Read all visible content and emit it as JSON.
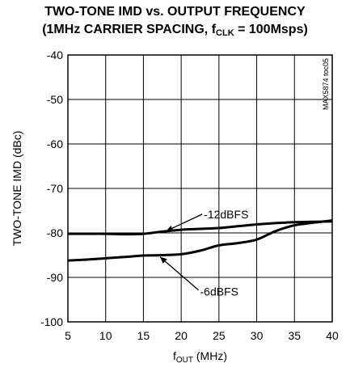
{
  "chart_data": {
    "type": "line",
    "title_line1": "TWO-TONE IMD vs. OUTPUT FREQUENCY",
    "title_line2_prefix": "(1MHz CARRIER SPACING, f",
    "title_line2_sub": "CLK",
    "title_line2_suffix": " = 100Msps)",
    "xlabel_prefix": "f",
    "xlabel_sub": "OUT",
    "xlabel_suffix": " (MHz)",
    "ylabel": "TWO-TONE IMD (dBc)",
    "xlim": [
      5,
      40
    ],
    "ylim": [
      -100,
      -40
    ],
    "x_ticks": [
      "5",
      "10",
      "15",
      "20",
      "25",
      "30",
      "35",
      "40"
    ],
    "y_ticks": [
      "-40",
      "-50",
      "-60",
      "-70",
      "-80",
      "-90",
      "-100"
    ],
    "grid": true,
    "side_label": "MAX5874 toc05",
    "series": [
      {
        "name": "-12dBFS",
        "x": [
          5,
          7.5,
          10,
          12.5,
          15,
          17.5,
          20,
          22.5,
          25,
          27.5,
          30,
          32.5,
          35,
          37.5,
          40
        ],
        "y": [
          -80.2,
          -80.2,
          -80.2,
          -80.3,
          -80.2,
          -79.7,
          -79.3,
          -79.1,
          -78.9,
          -78.5,
          -78.1,
          -77.8,
          -77.6,
          -77.5,
          -77.4
        ]
      },
      {
        "name": "-6dBFS",
        "x": [
          5,
          7.5,
          10,
          12.5,
          15,
          17.5,
          20,
          22.5,
          25,
          27.5,
          30,
          32.5,
          35,
          37.5,
          40
        ],
        "y": [
          -86.2,
          -86.0,
          -85.7,
          -85.4,
          -85.1,
          -85.0,
          -84.8,
          -84.0,
          -82.8,
          -82.3,
          -81.5,
          -79.6,
          -78.3,
          -77.7,
          -77.2
        ]
      }
    ],
    "annotations": [
      {
        "text": "-12dBFS",
        "x": 23.0,
        "y": -75.8,
        "arrow_to": [
          18.0,
          -79.6
        ]
      },
      {
        "text": "-6dBFS",
        "x": 22.5,
        "y": -93.2,
        "arrow_to": [
          17.2,
          -85.4
        ]
      }
    ]
  }
}
